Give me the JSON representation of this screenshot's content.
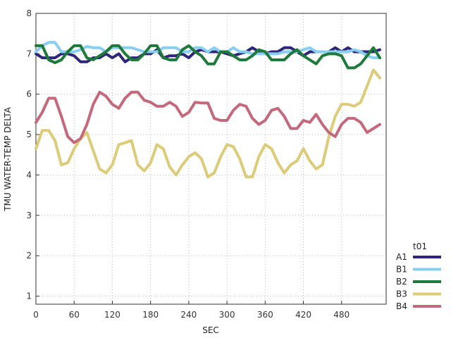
{
  "chart_data": {
    "type": "line",
    "xlabel": "SEC",
    "ylabel": "TMU WATER-TEMP DELTA",
    "xlim": [
      0,
      550
    ],
    "ylim": [
      0.8,
      8
    ],
    "xticks": [
      "0",
      "60",
      "120",
      "180",
      "240",
      "300",
      "360",
      "420",
      "480"
    ],
    "yticks": [
      "1",
      "2",
      "3",
      "4",
      "5",
      "6",
      "7",
      "8"
    ],
    "grid": "dotted",
    "legend": {
      "title": "t01",
      "position": "right"
    },
    "x": [
      0,
      10,
      20,
      30,
      40,
      50,
      60,
      70,
      80,
      90,
      100,
      110,
      120,
      130,
      140,
      150,
      160,
      170,
      180,
      190,
      200,
      210,
      220,
      230,
      240,
      250,
      260,
      270,
      280,
      290,
      300,
      310,
      320,
      330,
      340,
      350,
      360,
      370,
      380,
      390,
      400,
      410,
      420,
      430,
      440,
      450,
      460,
      470,
      480,
      490,
      500,
      510,
      520,
      530,
      540
    ],
    "series": [
      {
        "name": "A1",
        "color": "#2e2678",
        "values": [
          7.0,
          6.9,
          6.9,
          6.9,
          7.0,
          7.0,
          6.95,
          6.8,
          6.8,
          6.9,
          6.9,
          7.0,
          6.9,
          7.0,
          6.8,
          6.9,
          6.9,
          7.0,
          7.0,
          7.1,
          6.9,
          6.95,
          6.95,
          7.0,
          6.9,
          7.05,
          7.1,
          7.05,
          7.05,
          7.05,
          7.0,
          6.95,
          7.0,
          7.05,
          7.15,
          7.05,
          7.0,
          7.05,
          7.05,
          7.15,
          7.15,
          7.05,
          6.95,
          7.05,
          7.05,
          7.05,
          7.05,
          7.15,
          7.05,
          7.15,
          7.05,
          7.05,
          7.05,
          7.05,
          7.1
        ]
      },
      {
        "name": "B1",
        "color": "#87cef0",
        "values": [
          7.05,
          7.2,
          7.28,
          7.28,
          7.05,
          7.05,
          7.05,
          7.1,
          7.18,
          7.15,
          7.15,
          7.05,
          7.15,
          7.15,
          7.15,
          7.15,
          7.1,
          7.05,
          7.05,
          7.05,
          7.15,
          7.15,
          7.15,
          7.05,
          7.05,
          7.15,
          7.15,
          7.05,
          7.15,
          7.05,
          7.05,
          7.15,
          7.05,
          7.05,
          7.0,
          7.0,
          7.0,
          7.0,
          7.0,
          7.05,
          7.05,
          7.05,
          7.1,
          7.15,
          7.05,
          7.05,
          7.05,
          7.05,
          7.05,
          7.05,
          7.1,
          7.05,
          6.95,
          6.9,
          6.9
        ]
      },
      {
        "name": "B2",
        "color": "#1e7a3a",
        "values": [
          7.2,
          7.2,
          6.85,
          6.78,
          6.85,
          7.05,
          7.2,
          7.2,
          6.9,
          6.85,
          6.95,
          7.05,
          7.2,
          7.2,
          7.0,
          6.85,
          6.85,
          7.0,
          7.2,
          7.2,
          6.9,
          6.85,
          6.85,
          7.1,
          7.2,
          7.05,
          6.95,
          6.75,
          6.75,
          7.05,
          7.05,
          6.95,
          6.85,
          6.85,
          6.95,
          7.1,
          7.05,
          6.85,
          6.85,
          6.85,
          7.0,
          7.1,
          6.95,
          6.85,
          6.75,
          6.95,
          7.0,
          7.0,
          6.95,
          6.65,
          6.65,
          6.75,
          6.95,
          7.15,
          6.9
        ]
      },
      {
        "name": "B3",
        "color": "#dccb78",
        "values": [
          4.65,
          5.1,
          5.1,
          4.85,
          4.25,
          4.3,
          4.65,
          4.9,
          5.05,
          4.6,
          4.15,
          4.05,
          4.25,
          4.75,
          4.8,
          4.85,
          4.25,
          4.1,
          4.3,
          4.75,
          4.65,
          4.2,
          4.0,
          4.25,
          4.45,
          4.55,
          4.4,
          3.95,
          4.05,
          4.45,
          4.75,
          4.7,
          4.4,
          3.95,
          3.95,
          4.45,
          4.75,
          4.65,
          4.3,
          4.05,
          4.25,
          4.35,
          4.65,
          4.35,
          4.15,
          4.25,
          4.95,
          5.45,
          5.75,
          5.75,
          5.7,
          5.8,
          6.2,
          6.6,
          6.4
        ]
      },
      {
        "name": "B4",
        "color": "#c4697b",
        "values": [
          5.3,
          5.55,
          5.9,
          5.9,
          5.45,
          4.95,
          4.8,
          4.9,
          5.25,
          5.75,
          6.05,
          5.95,
          5.75,
          5.65,
          5.9,
          6.05,
          6.05,
          5.85,
          5.8,
          5.7,
          5.7,
          5.8,
          5.7,
          5.45,
          5.55,
          5.8,
          5.78,
          5.78,
          5.4,
          5.35,
          5.35,
          5.6,
          5.75,
          5.7,
          5.4,
          5.25,
          5.35,
          5.6,
          5.65,
          5.45,
          5.15,
          5.15,
          5.35,
          5.3,
          5.5,
          5.25,
          5.05,
          4.95,
          5.25,
          5.4,
          5.4,
          5.3,
          5.05,
          5.15,
          5.25
        ]
      }
    ]
  }
}
